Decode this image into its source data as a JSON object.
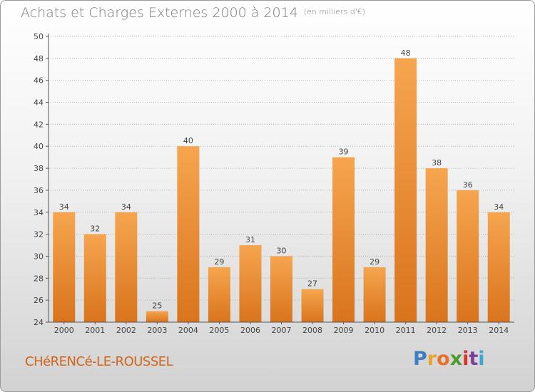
{
  "header": {
    "title": "Achats et Charges Externes 2000 à 2014",
    "unit": "(en milliers d'€)"
  },
  "footer": {
    "commune": "CHéRENCé-LE-ROUSSEL",
    "logo_letters": [
      "P",
      "r",
      "o",
      "x",
      "i",
      "t",
      "i"
    ],
    "logo_colors": [
      "#3e7fc4",
      "#e8a32a",
      "#e8722a",
      "#4a9c2e",
      "#d8342a",
      "#7d3f97",
      "#3aa7d6"
    ]
  },
  "colors": {
    "bar_light": "#f6a54f",
    "bar_dark": "#d9741d",
    "axis": "#555555",
    "grid": "#b0b0b0",
    "label": "#444444"
  },
  "chart_data": {
    "type": "bar",
    "categories": [
      "2000",
      "2001",
      "2002",
      "2003",
      "2004",
      "2005",
      "2006",
      "2007",
      "2008",
      "2009",
      "2010",
      "2011",
      "2012",
      "2013",
      "2014"
    ],
    "values": [
      34,
      32,
      34,
      25,
      40,
      29,
      31,
      30,
      27,
      39,
      29,
      48,
      38,
      36,
      34
    ],
    "yticks": [
      24,
      26,
      28,
      30,
      32,
      34,
      36,
      38,
      40,
      42,
      44,
      46,
      48,
      50
    ],
    "ylim": [
      24,
      50
    ],
    "grid": true,
    "legend": "none"
  }
}
